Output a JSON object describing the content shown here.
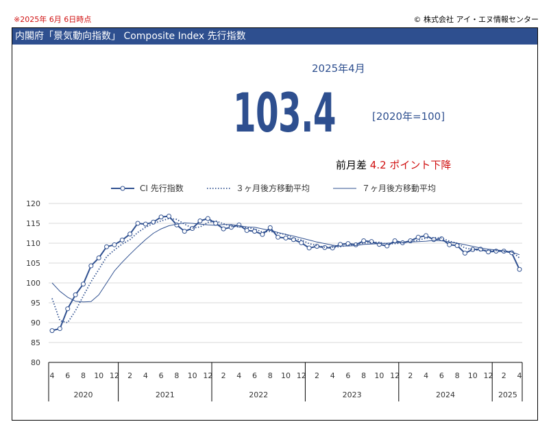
{
  "header": {
    "note": "※2025年 6月 6日時点",
    "copyright": "© 株式会社 アイ・エヌ情報センター",
    "title": "内閣府「景気動向指数」 Composite Index 先行指数"
  },
  "summary": {
    "period": "2025年4月",
    "value": "103.4",
    "base": "[2020年=100]",
    "diff_prefix": "前月差",
    "diff_value": "4.2 ポイント下降"
  },
  "colors": {
    "primary": "#2e4f8f",
    "accent": "#d01010"
  },
  "chart_data": {
    "type": "line",
    "title": "",
    "xlabel": "",
    "ylabel": "",
    "ylim": [
      80,
      120
    ],
    "yticks": [
      80,
      85,
      90,
      95,
      100,
      105,
      110,
      115,
      120
    ],
    "grid": true,
    "legend_position": "top",
    "x_tick_labels": [
      "4",
      "6",
      "8",
      "10",
      "12",
      "2",
      "4",
      "6",
      "8",
      "10",
      "12",
      "2",
      "4",
      "6",
      "8",
      "10",
      "12",
      "2",
      "4",
      "6",
      "8",
      "10",
      "12",
      "2",
      "4",
      "6",
      "8",
      "10",
      "12",
      "2",
      "4"
    ],
    "years": [
      {
        "label": "2020",
        "months": 9
      },
      {
        "label": "2021",
        "months": 12
      },
      {
        "label": "2022",
        "months": 12
      },
      {
        "label": "2023",
        "months": 12
      },
      {
        "label": "2024",
        "months": 12
      },
      {
        "label": "2025",
        "months": 4
      }
    ],
    "x": [
      "2020-04",
      "2020-05",
      "2020-06",
      "2020-07",
      "2020-08",
      "2020-09",
      "2020-10",
      "2020-11",
      "2020-12",
      "2021-01",
      "2021-02",
      "2021-03",
      "2021-04",
      "2021-05",
      "2021-06",
      "2021-07",
      "2021-08",
      "2021-09",
      "2021-10",
      "2021-11",
      "2021-12",
      "2022-01",
      "2022-02",
      "2022-03",
      "2022-04",
      "2022-05",
      "2022-06",
      "2022-07",
      "2022-08",
      "2022-09",
      "2022-10",
      "2022-11",
      "2022-12",
      "2023-01",
      "2023-02",
      "2023-03",
      "2023-04",
      "2023-05",
      "2023-06",
      "2023-07",
      "2023-08",
      "2023-09",
      "2023-10",
      "2023-11",
      "2023-12",
      "2024-01",
      "2024-02",
      "2024-03",
      "2024-04",
      "2024-05",
      "2024-06",
      "2024-07",
      "2024-08",
      "2024-09",
      "2024-10",
      "2024-11",
      "2024-12",
      "2025-01",
      "2025-02",
      "2025-03",
      "2025-04"
    ],
    "series": [
      {
        "name": "CI 先行指数",
        "style": "line-marker",
        "values": [
          88.0,
          88.5,
          93.5,
          97.0,
          99.7,
          104.3,
          106.3,
          109.1,
          109.6,
          110.8,
          112.3,
          115.0,
          114.8,
          115.3,
          116.6,
          116.8,
          114.6,
          113.0,
          113.7,
          115.6,
          116.2,
          115.0,
          113.6,
          114.0,
          114.6,
          113.2,
          113.0,
          112.2,
          113.9,
          111.5,
          111.3,
          110.9,
          110.1,
          108.8,
          109.2,
          108.9,
          108.8,
          109.7,
          109.9,
          109.6,
          110.6,
          110.4,
          109.7,
          109.3,
          110.6,
          110.1,
          110.6,
          111.5,
          111.9,
          110.9,
          111.1,
          109.6,
          109.4,
          107.5,
          108.4,
          108.5,
          107.8,
          108.0,
          108.0,
          107.6,
          103.4
        ]
      },
      {
        "name": "３ヶ月後方移動平均",
        "style": "dotted",
        "values": [
          96.1,
          90.5,
          90.0,
          93.0,
          96.7,
          100.3,
          103.4,
          106.6,
          108.3,
          109.8,
          110.9,
          112.7,
          114.0,
          115.0,
          115.6,
          116.2,
          116.0,
          114.8,
          113.8,
          114.1,
          115.2,
          115.6,
          114.9,
          114.2,
          114.1,
          113.9,
          113.6,
          112.8,
          113.0,
          112.5,
          112.2,
          111.2,
          110.8,
          109.9,
          109.4,
          109.0,
          109.0,
          109.1,
          109.5,
          109.7,
          110.0,
          110.2,
          110.2,
          109.8,
          109.9,
          110.0,
          110.5,
          110.7,
          111.3,
          111.4,
          111.3,
          110.5,
          110.0,
          108.8,
          108.4,
          108.1,
          108.2,
          108.1,
          107.9,
          107.9,
          106.3
        ]
      },
      {
        "name": "７ヶ月後方移動平均",
        "style": "solid-thin",
        "values": [
          100.0,
          97.9,
          96.4,
          95.4,
          95.2,
          95.3,
          97.0,
          100.0,
          103.0,
          105.2,
          107.2,
          109.1,
          110.9,
          112.5,
          113.6,
          114.4,
          114.8,
          115.1,
          115.0,
          114.8,
          114.6,
          114.5,
          114.7,
          114.7,
          114.4,
          114.1,
          114.0,
          113.6,
          113.2,
          112.7,
          112.2,
          111.8,
          111.3,
          110.8,
          110.3,
          109.9,
          109.5,
          109.3,
          109.3,
          109.4,
          109.7,
          109.8,
          109.9,
          110.0,
          110.1,
          110.2,
          110.3,
          110.4,
          110.5,
          110.7,
          110.6,
          110.3,
          110.0,
          109.6,
          109.2,
          108.8,
          108.5,
          108.3,
          108.1,
          107.8,
          107.1
        ]
      }
    ]
  }
}
